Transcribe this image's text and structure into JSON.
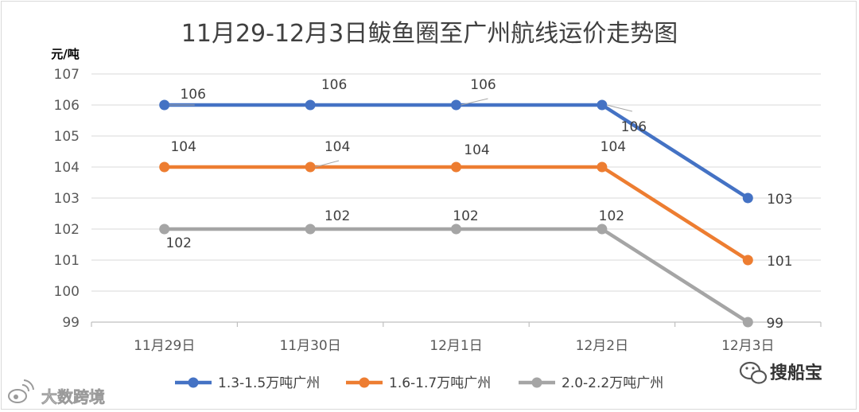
{
  "chart_data": {
    "type": "line",
    "title": "11月29-12月3日鲅鱼圈至广州航线运价走势图",
    "ylabel": "元/吨",
    "xlabel": "",
    "categories": [
      "11月29日",
      "11月30日",
      "12月1日",
      "12月2日",
      "12月3日"
    ],
    "ylim": [
      99,
      107
    ],
    "yticks": [
      99,
      100,
      101,
      102,
      103,
      104,
      105,
      106,
      107
    ],
    "grid": true,
    "legend_position": "bottom",
    "series": [
      {
        "name": "1.3-1.5万吨广州",
        "color": "#4472c4",
        "values": [
          106,
          106,
          106,
          106,
          103
        ]
      },
      {
        "name": "1.6-1.7万吨广州",
        "color": "#ed7d31",
        "values": [
          104,
          104,
          104,
          104,
          101
        ]
      },
      {
        "name": "2.0-2.2万吨广州",
        "color": "#a5a5a5",
        "values": [
          102,
          102,
          102,
          102,
          99
        ]
      }
    ]
  },
  "watermarks": {
    "wechat_account": "搜船宝",
    "weibo_account": "大数跨境"
  },
  "icons": [
    "wechat-icon",
    "weibo-icon"
  ]
}
